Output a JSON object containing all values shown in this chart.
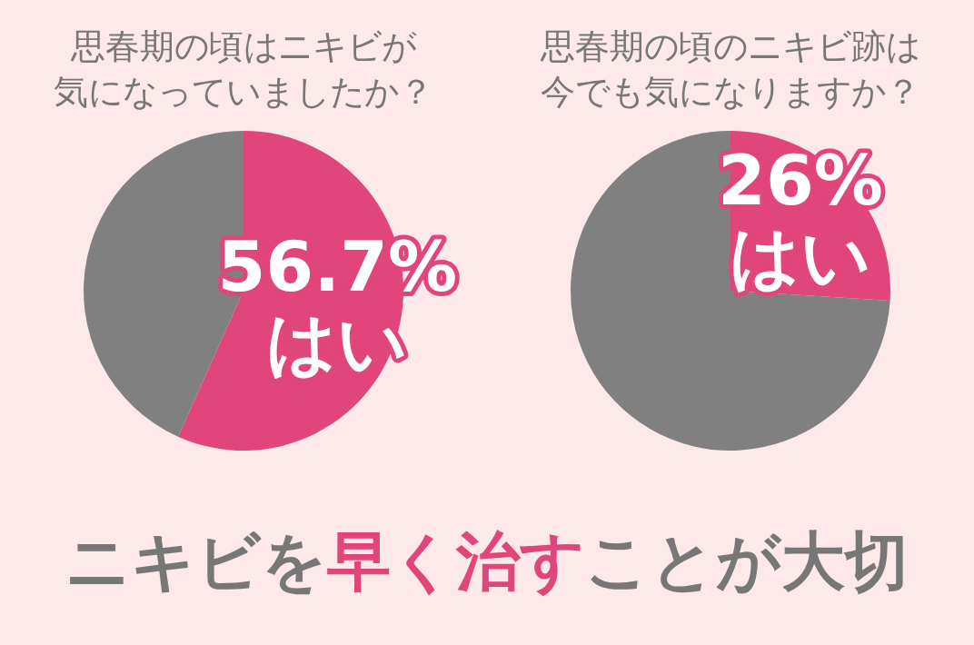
{
  "chart_data": [
    {
      "type": "pie",
      "title": "思春期の頃はニキビが気になっていましたか？",
      "categories": [
        "はい",
        null
      ],
      "values": [
        56.7,
        43.3
      ],
      "colors": [
        "#e0457b",
        "#808080"
      ],
      "value_labels": [
        "56.7%",
        null
      ],
      "legend": false,
      "annotations": [
        "ニキビを",
        "早く治す",
        "ことが大切"
      ]
    },
    {
      "type": "pie",
      "title": "思春期の頃のニキビ跡は今でも気になりますか？",
      "categories": [
        "はい",
        null
      ],
      "values": [
        26,
        74
      ],
      "colors": [
        "#e0457b",
        "#808080"
      ],
      "value_labels": [
        "26%",
        null
      ],
      "legend": false
    }
  ]
}
